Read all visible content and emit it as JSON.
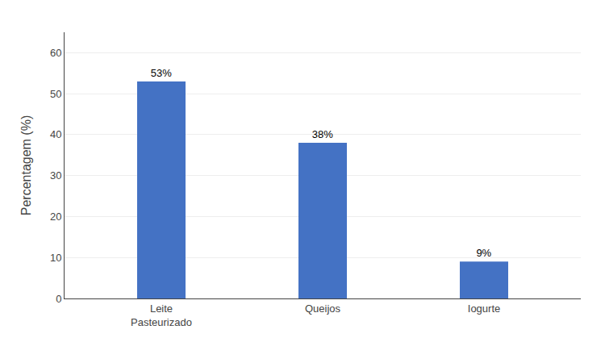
{
  "chart_data": {
    "type": "bar",
    "categories": [
      "Leite\nPasteurizado",
      "Queijos",
      "Iogurte"
    ],
    "values": [
      53,
      38,
      9
    ],
    "value_labels": [
      "53%",
      "38%",
      "9%"
    ],
    "data_labels": true,
    "color": "#4472C4",
    "ylabel": "Percentagem (%)",
    "ylim": [
      0,
      65
    ],
    "yticks": [
      0,
      10,
      20,
      30,
      40,
      50,
      60
    ],
    "grid": true
  }
}
